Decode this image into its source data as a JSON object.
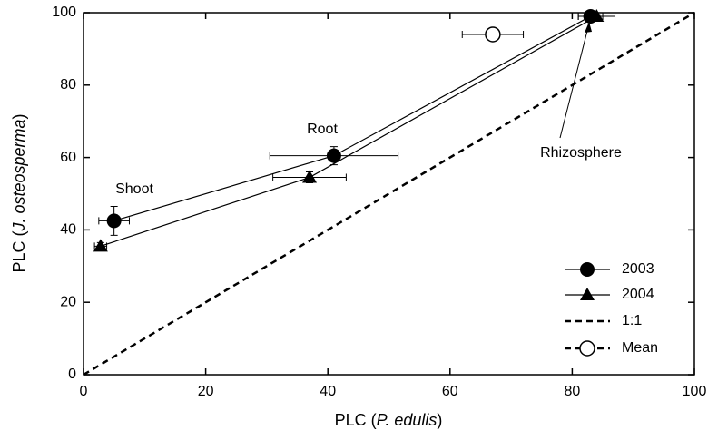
{
  "chart_data": {
    "type": "scatter",
    "xlabel": [
      "PLC (",
      "P. edulis",
      ")"
    ],
    "ylabel": [
      "PLC (",
      "J. osteosperma",
      ")"
    ],
    "xlim": [
      0,
      100
    ],
    "ylim": [
      0,
      100
    ],
    "xticks": [
      0,
      20,
      40,
      60,
      80,
      100
    ],
    "yticks": [
      0,
      20,
      40,
      60,
      80,
      100
    ],
    "legend": "lower right",
    "annotations": [
      "Shoot",
      "Root",
      "Rhizosphere"
    ],
    "series": [
      {
        "name": "2003",
        "color": "#000000",
        "marker": "circle",
        "line": "solid",
        "x": [
          5,
          41,
          83
        ],
        "values": [
          42.5,
          60.5,
          99
        ],
        "xerr": [
          2.5,
          10.5,
          2
        ],
        "yerr": [
          4,
          2.5,
          0.8
        ]
      },
      {
        "name": "2004",
        "color": "#000000",
        "marker": "triangle",
        "line": "solid",
        "x": [
          2.8,
          37,
          84
        ],
        "values": [
          35.5,
          54.5,
          99
        ],
        "xerr": [
          1,
          6,
          3
        ],
        "yerr": [
          1,
          1.5,
          0.5
        ]
      },
      {
        "name": "1:1",
        "color": "#000000",
        "marker": "none",
        "line": "dashed",
        "x": [
          0,
          100
        ],
        "values": [
          0,
          100
        ]
      },
      {
        "name": "Mean",
        "color": "#000000",
        "marker": "open-circle",
        "line": "dashed",
        "legend_only_line": true,
        "x": [
          67
        ],
        "values": [
          94
        ],
        "xerr": [
          5
        ]
      }
    ]
  }
}
